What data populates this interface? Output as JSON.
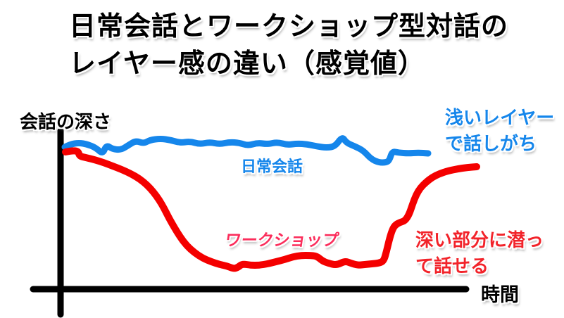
{
  "title": {
    "line1": "日常会話とワークショップ型対話の",
    "line2": "レイヤー感の違い（感覚値）"
  },
  "axis_labels": {
    "y": "会話の深さ",
    "x": "時間"
  },
  "series_labels": {
    "daily": "日常会話",
    "workshop": "ワークショップ"
  },
  "annotations": {
    "shallow": {
      "line1": "浅いレイヤー",
      "line2": "で話しがち"
    },
    "deep": {
      "line1": "深い部分に潜っ",
      "line2": "て話せる"
    }
  },
  "colors": {
    "daily_blue": "#1586EB",
    "workshop_red": "#F40000",
    "workshop_label_pink": "#FB2D5B",
    "deep_note_red": "#F2232A",
    "axis_black": "#000000",
    "title_black": "#000000"
  },
  "chart_data": {
    "type": "line",
    "title": "日常会話とワークショップ型対話のレイヤー感の違い（感覚値）",
    "xlabel": "時間",
    "ylabel": "会話の深さ",
    "legend_position": "inline-labels",
    "grid": false,
    "note": "conceptual sketch, no numeric ticks; points are canvas coordinates (y down = deeper)",
    "axis": {
      "color": "#000000",
      "stroke_width": 9,
      "x_axis": [
        [
          47,
          411
        ],
        [
          662,
          411
        ]
      ],
      "y_axis": [
        [
          86,
          186
        ],
        [
          86,
          447
        ]
      ]
    },
    "series": [
      {
        "id": "daily-conversation-line",
        "name": "日常会話",
        "color": "#1586EB",
        "stroke_width": 9,
        "points": [
          [
            92,
            209
          ],
          [
            100,
            205
          ],
          [
            112,
            203
          ],
          [
            124,
            205
          ],
          [
            136,
            210
          ],
          [
            146,
            219
          ],
          [
            151,
            206
          ],
          [
            160,
            212
          ],
          [
            172,
            213
          ],
          [
            183,
            206
          ],
          [
            193,
            200
          ],
          [
            204,
            204
          ],
          [
            213,
            199
          ],
          [
            228,
            197
          ],
          [
            242,
            199
          ],
          [
            256,
            203
          ],
          [
            270,
            201
          ],
          [
            284,
            205
          ],
          [
            298,
            202
          ],
          [
            312,
            205
          ],
          [
            326,
            202
          ],
          [
            340,
            203
          ],
          [
            352,
            207
          ],
          [
            366,
            203
          ],
          [
            380,
            205
          ],
          [
            394,
            202
          ],
          [
            408,
            206
          ],
          [
            422,
            204
          ],
          [
            436,
            205
          ],
          [
            450,
            208
          ],
          [
            464,
            210
          ],
          [
            476,
            208
          ],
          [
            486,
            194
          ],
          [
            492,
            203
          ],
          [
            504,
            208
          ],
          [
            516,
            214
          ],
          [
            527,
            226
          ],
          [
            538,
            231
          ],
          [
            548,
            231
          ],
          [
            553,
            228
          ],
          [
            557,
            215
          ],
          [
            566,
            217
          ],
          [
            580,
            218
          ],
          [
            594,
            217
          ],
          [
            608,
            218
          ]
        ]
      },
      {
        "id": "workshop-line",
        "name": "ワークショップ",
        "color": "#F40000",
        "stroke_width": 10,
        "points": [
          [
            93,
            216
          ],
          [
            103,
            214
          ],
          [
            111,
            215
          ],
          [
            113,
            222
          ],
          [
            122,
            224
          ],
          [
            134,
            227
          ],
          [
            147,
            231
          ],
          [
            160,
            236
          ],
          [
            173,
            241
          ],
          [
            186,
            247
          ],
          [
            198,
            254
          ],
          [
            209,
            263
          ],
          [
            218,
            273
          ],
          [
            226,
            284
          ],
          [
            233,
            296
          ],
          [
            240,
            310
          ],
          [
            248,
            324
          ],
          [
            256,
            337
          ],
          [
            265,
            349
          ],
          [
            276,
            359
          ],
          [
            288,
            367
          ],
          [
            300,
            372
          ],
          [
            312,
            376
          ],
          [
            322,
            378
          ],
          [
            332,
            382
          ],
          [
            338,
            380
          ],
          [
            344,
            375
          ],
          [
            356,
            377
          ],
          [
            368,
            377
          ],
          [
            380,
            375
          ],
          [
            392,
            372
          ],
          [
            404,
            369
          ],
          [
            416,
            365
          ],
          [
            428,
            363
          ],
          [
            440,
            363
          ],
          [
            450,
            364
          ],
          [
            458,
            371
          ],
          [
            466,
            374
          ],
          [
            478,
            377
          ],
          [
            490,
            371
          ],
          [
            498,
            374
          ],
          [
            508,
            377
          ],
          [
            518,
            376
          ],
          [
            528,
            375
          ],
          [
            538,
            374
          ],
          [
            545,
            371
          ],
          [
            549,
            357
          ],
          [
            553,
            340
          ],
          [
            557,
            327
          ],
          [
            561,
            320
          ],
          [
            568,
            316
          ],
          [
            575,
            314
          ],
          [
            581,
            305
          ],
          [
            586,
            290
          ],
          [
            591,
            277
          ],
          [
            597,
            267
          ],
          [
            605,
            259
          ],
          [
            614,
            252
          ],
          [
            624,
            247
          ],
          [
            636,
            243
          ],
          [
            650,
            240
          ],
          [
            664,
            238
          ],
          [
            677,
            237
          ]
        ]
      }
    ]
  }
}
